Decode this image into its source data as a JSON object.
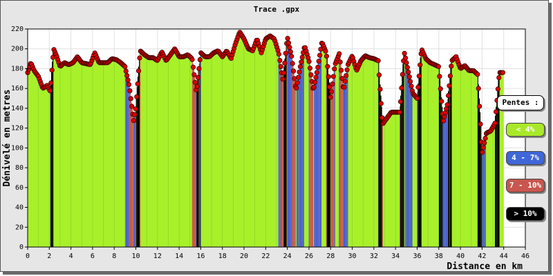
{
  "chart_data": {
    "type": "area",
    "title": "Trace .gpx",
    "xlabel": "Distance en km",
    "ylabel": "Dénivelé en metres",
    "xlim": [
      0,
      46
    ],
    "ylim": [
      0,
      220
    ],
    "xticks": [
      0,
      2,
      4,
      6,
      8,
      10,
      12,
      14,
      16,
      18,
      20,
      22,
      24,
      26,
      28,
      30,
      32,
      34,
      36,
      38,
      40,
      42,
      44,
      46
    ],
    "yticks": [
      0,
      20,
      40,
      60,
      80,
      100,
      120,
      140,
      160,
      180,
      200,
      220
    ],
    "grid": true,
    "legend_position": "right",
    "series": [
      {
        "x": [
          0,
          0.3,
          0.6,
          1.0,
          1.4,
          1.8,
          2.1,
          2.4,
          2.7,
          3.0,
          3.4,
          3.8,
          4.2,
          4.6,
          5.0,
          5.4,
          5.8,
          6.2,
          6.6,
          7.0,
          7.4,
          7.8,
          8.2,
          8.6,
          9.0,
          9.4,
          9.8,
          10.0,
          10.4,
          10.8,
          11.2,
          11.6,
          12.0,
          12.4,
          12.8,
          13.2,
          13.6,
          14.0,
          14.4,
          14.8,
          15.2,
          15.6,
          16.0,
          16.4,
          16.8,
          17.2,
          17.6,
          18.0,
          18.4,
          18.8,
          19.2,
          19.6,
          20.0,
          20.4,
          20.8,
          21.2,
          21.6,
          22.0,
          22.4,
          22.8,
          23.2,
          23.6,
          24.0,
          24.4,
          24.8,
          25.2,
          25.6,
          26.0,
          26.4,
          26.8,
          27.2,
          27.6,
          28.0,
          28.4,
          28.8,
          29.2,
          29.6,
          30.0,
          30.4,
          30.8,
          31.2,
          31.6,
          32.0,
          32.4,
          32.8,
          33.2,
          33.6,
          34.0,
          34.4,
          34.8,
          35.2,
          35.6,
          36.0,
          36.4,
          36.8,
          37.2,
          37.6,
          38.0,
          38.4,
          38.8,
          39.2,
          39.6,
          40.0,
          40.4,
          40.8,
          41.2,
          41.6,
          42.0,
          42.4,
          42.8,
          43.2,
          43.6,
          44.0
        ],
        "y": [
          176,
          186,
          178,
          172,
          160,
          163,
          157,
          200,
          192,
          182,
          186,
          184,
          186,
          192,
          186,
          185,
          184,
          196,
          186,
          186,
          186,
          190,
          189,
          186,
          182,
          162,
          127,
          140,
          198,
          194,
          191,
          191,
          188,
          197,
          188,
          194,
          200,
          192,
          192,
          194,
          190,
          156,
          196,
          192,
          192,
          196,
          198,
          192,
          198,
          190,
          205,
          217,
          210,
          200,
          198,
          210,
          196,
          210,
          213,
          210,
          196,
          168,
          212,
          192,
          158,
          182,
          203,
          188,
          158,
          180,
          207,
          196,
          150,
          184,
          195,
          158,
          184,
          193,
          178,
          188,
          193,
          191,
          190,
          188,
          124,
          130,
          136,
          136,
          136,
          197,
          176,
          155,
          150,
          200,
          190,
          186,
          184,
          182,
          126,
          144,
          188,
          192,
          180,
          183,
          178,
          178,
          174,
          94,
          115,
          117,
          125,
          176,
          176
        ]
      }
    ],
    "legend": [
      {
        "label": "Pentes :"
      },
      {
        "label": "< 4%",
        "color": "#a9e829"
      },
      {
        "label": "4 - 7%",
        "color": "#3f67d8"
      },
      {
        "label": "7 - 10%",
        "color": "#c8564e"
      },
      {
        "label": "> 10%",
        "color": "#000000"
      }
    ],
    "colors": {
      "fill": "#a8f02a",
      "marker": "#dd0000",
      "marker_edge": "#3a0000",
      "steep": "#000000",
      "medium": "#4a5bd8",
      "moderate": "#c8564e"
    }
  }
}
